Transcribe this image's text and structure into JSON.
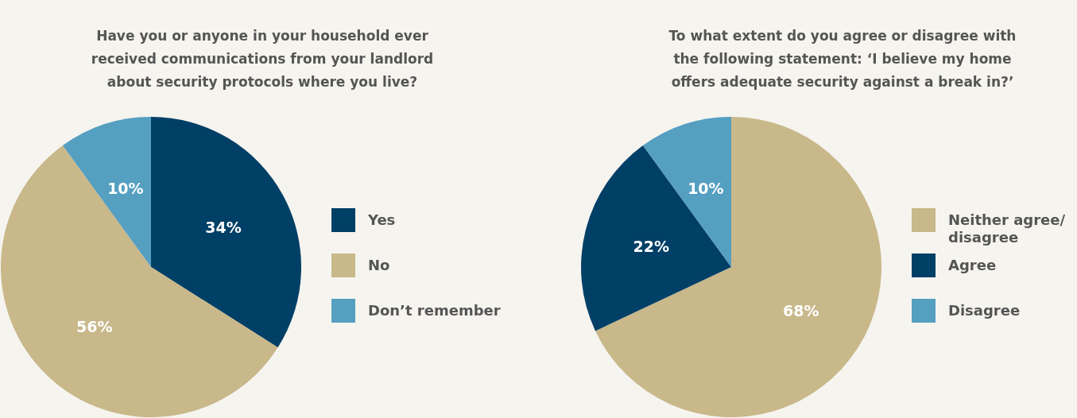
{
  "chart_data": [
    {
      "type": "pie",
      "title": "Have you or anyone in your household ever received communications from your landlord about security protocols where you live?",
      "categories": [
        "Yes",
        "No",
        "Don’t remember"
      ],
      "values": [
        34,
        56,
        10
      ],
      "value_labels": [
        "34%",
        "56%",
        "10%"
      ],
      "colors": [
        "#003f66",
        "#c8b88a",
        "#559fc1"
      ],
      "legend": "right"
    },
    {
      "type": "pie",
      "title": "To what extent do you agree or disagree with the following statement: ‘I believe my home offers adequate security against a break in?’",
      "categories": [
        "Neither agree/ disagree",
        "Agree",
        "Disagree"
      ],
      "values": [
        68,
        22,
        10
      ],
      "value_labels": [
        "68%",
        "22%",
        "10%"
      ],
      "colors": [
        "#c8b88a",
        "#003f66",
        "#559fc1"
      ],
      "legend": "right"
    }
  ]
}
